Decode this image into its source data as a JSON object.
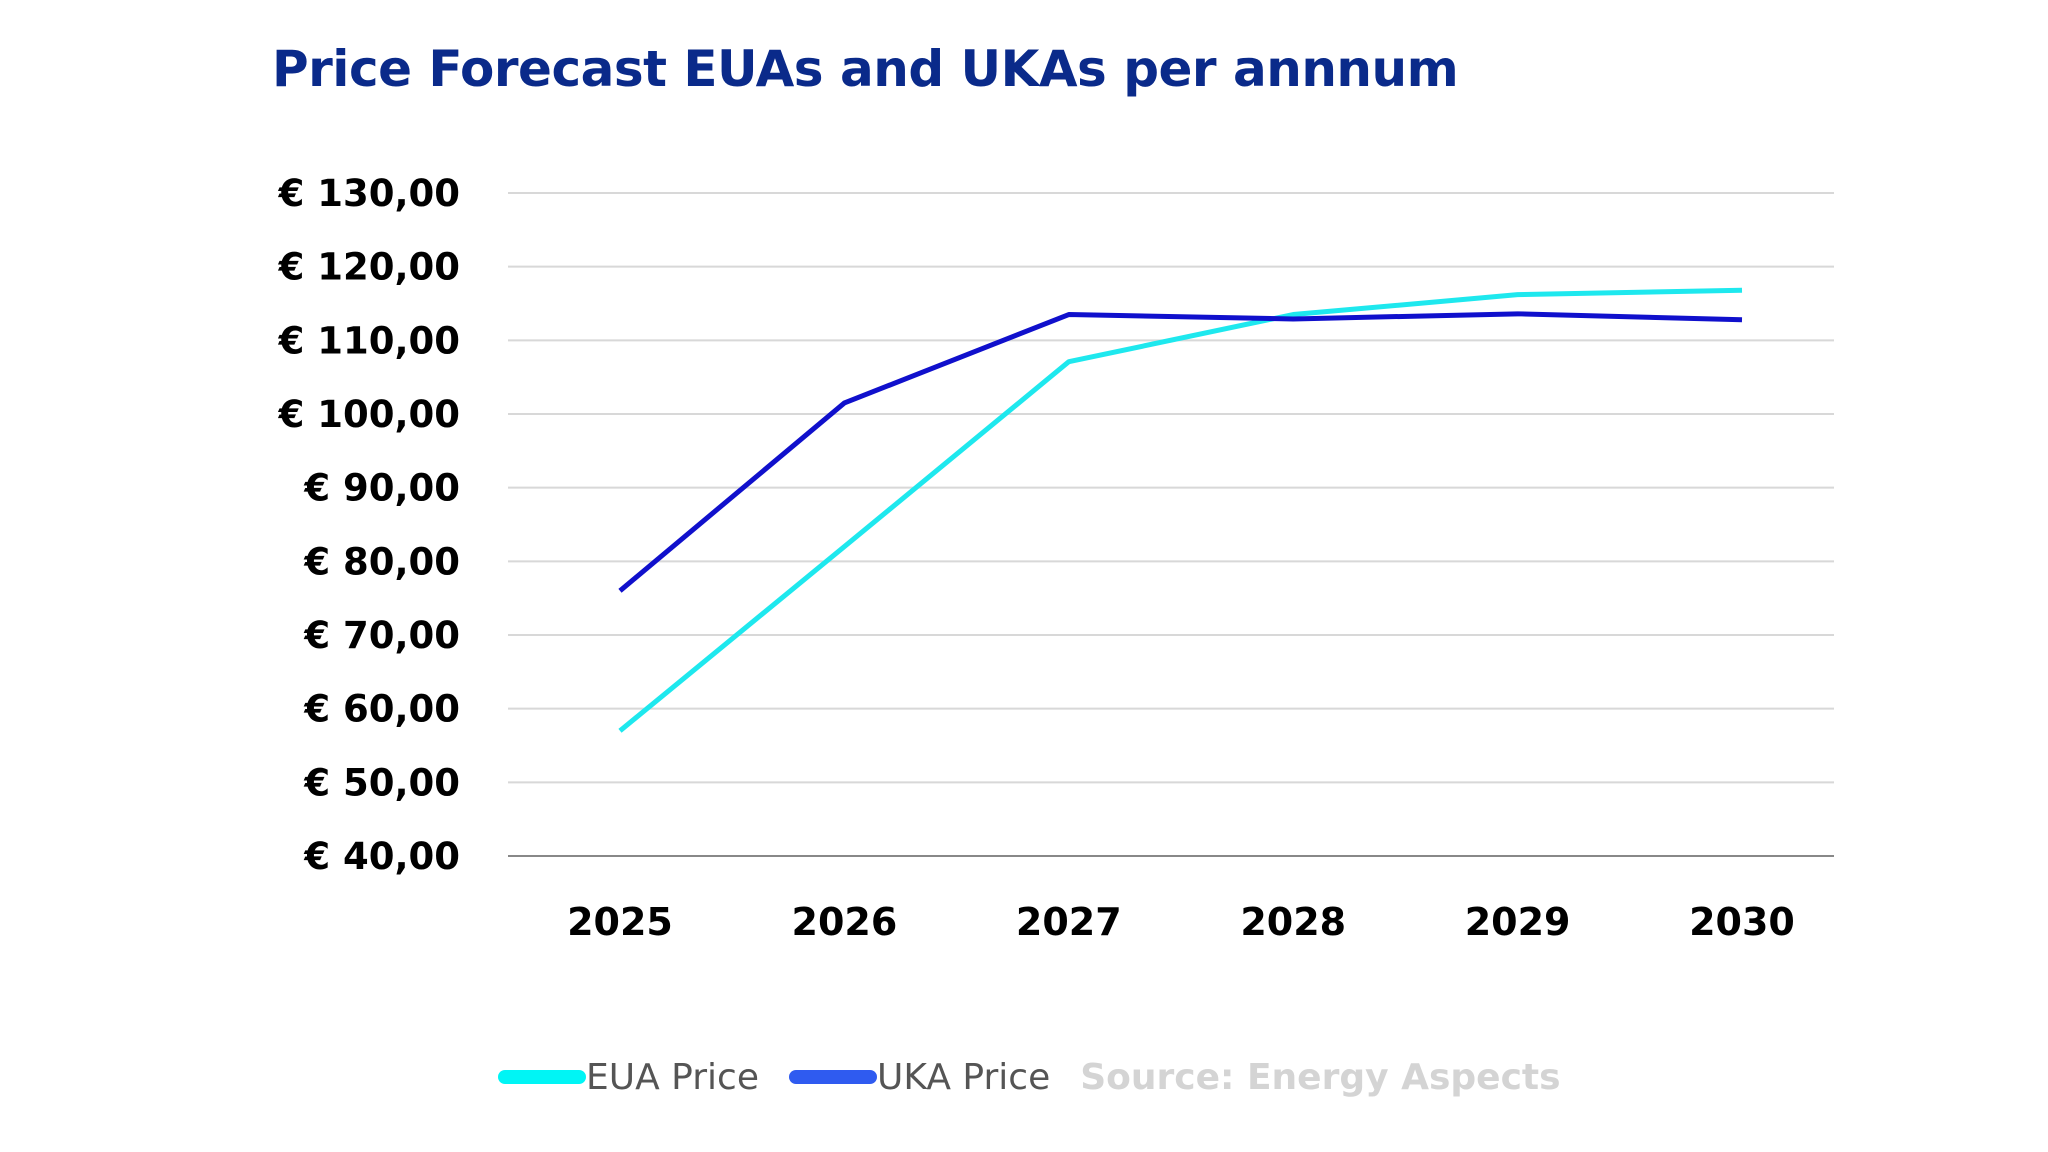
{
  "chart_data": {
    "type": "line",
    "title": "Price Forecast EUAs and UKAs per annnum",
    "categories": [
      "2025",
      "2026",
      "2027",
      "2028",
      "2029",
      "2030"
    ],
    "series": [
      {
        "name": "EUA Price",
        "color": "#1ee8ee",
        "legend_color": "#00f5f5",
        "values": [
          57.0,
          82.0,
          107.1,
          113.5,
          116.2,
          116.8
        ]
      },
      {
        "name": "UKA Price",
        "color": "#1010cc",
        "legend_color": "#2f5bf0",
        "values": [
          76.0,
          101.5,
          113.5,
          112.9,
          113.6,
          112.8
        ]
      }
    ],
    "ylim": [
      40,
      130
    ],
    "yticks": [
      40,
      50,
      60,
      70,
      80,
      90,
      100,
      110,
      120,
      130
    ],
    "ytick_labels": [
      "€ 40,00",
      "€ 50,00",
      "€ 60,00",
      "€ 70,00",
      "€ 80,00",
      "€ 90,00",
      "€ 100,00",
      "€ 110,00",
      "€ 120,00",
      "€ 130,00"
    ],
    "grid": true,
    "legend": "bottom",
    "source": "Source: Energy Aspects"
  }
}
